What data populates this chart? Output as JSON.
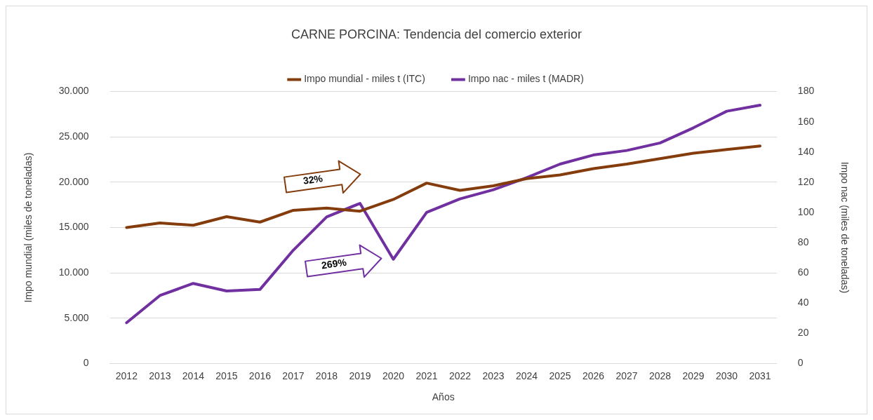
{
  "chart_data": {
    "type": "line",
    "title": "CARNE PORCINA: Tendencia del comercio exterior",
    "xlabel": "Años",
    "ylabel": "Impo mundial (miles de toneladas)",
    "y2label": "Impo nac (miles de toneladas)",
    "categories": [
      "2012",
      "2013",
      "2014",
      "2015",
      "2016",
      "2017",
      "2018",
      "2019",
      "2020",
      "2021",
      "2022",
      "2023",
      "2024",
      "2025",
      "2026",
      "2027",
      "2028",
      "2029",
      "2030",
      "2031"
    ],
    "series": [
      {
        "name": "Impo mundial - miles t (ITC)",
        "color": "#843c0c",
        "values": [
          15000,
          15500,
          15250,
          16200,
          15600,
          16900,
          17150,
          16800,
          18100,
          19900,
          19100,
          19600,
          20400,
          20800,
          21500,
          22000,
          22600,
          23200,
          23600,
          24000
        ]
      },
      {
        "name": "Impo nac - miles t (MADR)",
        "color": "#7030a0",
        "axis": "y2",
        "values": [
          27,
          45,
          53,
          48,
          49,
          75,
          97,
          106,
          69,
          100,
          109,
          115,
          123,
          132,
          138,
          141,
          146,
          156,
          167,
          171
        ]
      }
    ],
    "ylim": [
      0,
      30000
    ],
    "yticks": [
      {
        "value": 0,
        "label": "0"
      },
      {
        "value": 5000,
        "label": "5.000"
      },
      {
        "value": 10000,
        "label": "10.000"
      },
      {
        "value": 15000,
        "label": "15.000"
      },
      {
        "value": 20000,
        "label": "20.000"
      },
      {
        "value": 25000,
        "label": "25.000"
      },
      {
        "value": 30000,
        "label": "30.000"
      }
    ],
    "y2lim": [
      0,
      180
    ],
    "y2ticks": [
      0,
      20,
      40,
      60,
      80,
      100,
      120,
      140,
      160,
      180
    ],
    "grid": "y",
    "legend": "top",
    "marker": "none",
    "line_style": "solid",
    "annotations": [
      "32%",
      "269%"
    ]
  }
}
